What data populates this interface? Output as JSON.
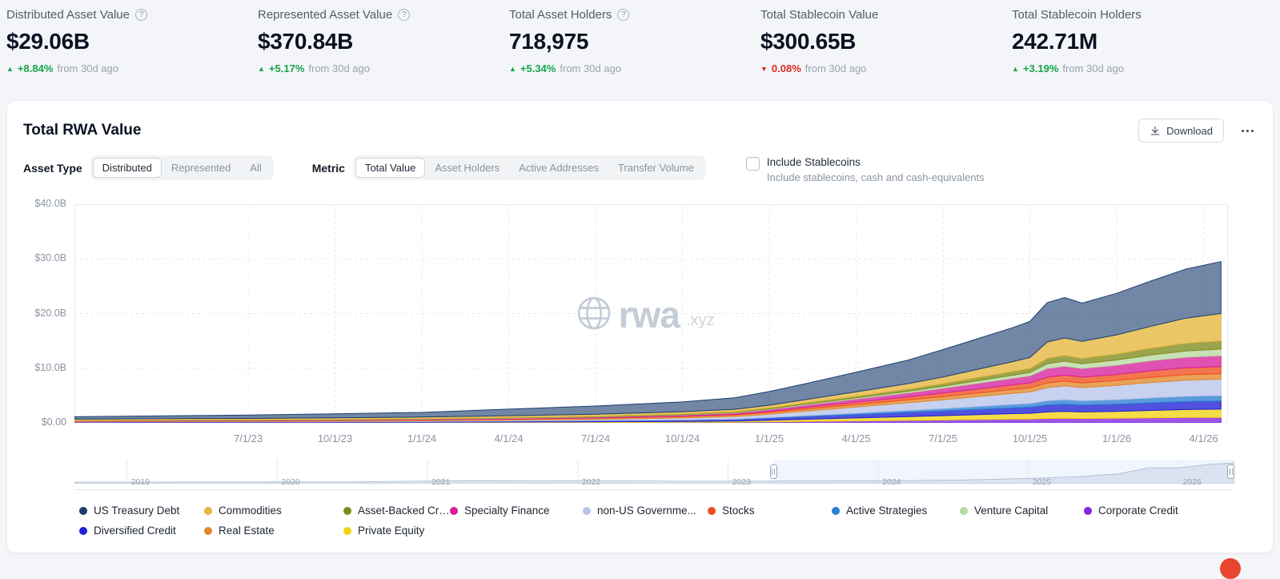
{
  "stats": [
    {
      "label": "Distributed Asset Value",
      "has_help": true,
      "value": "$29.06B",
      "delta": "+8.84%",
      "delta_dir": "up",
      "delta_suffix": "from 30d ago"
    },
    {
      "label": "Represented Asset Value",
      "has_help": true,
      "value": "$370.84B",
      "delta": "+5.17%",
      "delta_dir": "up",
      "delta_suffix": "from 30d ago"
    },
    {
      "label": "Total Asset Holders",
      "has_help": true,
      "value": "718,975",
      "delta": "+5.34%",
      "delta_dir": "up",
      "delta_suffix": "from 30d ago"
    },
    {
      "label": "Total Stablecoin Value",
      "has_help": false,
      "value": "$300.65B",
      "delta": "0.08%",
      "delta_dir": "down",
      "delta_suffix": "from 30d ago"
    },
    {
      "label": "Total Stablecoin Holders",
      "has_help": false,
      "value": "242.71M",
      "delta": "+3.19%",
      "delta_dir": "up",
      "delta_suffix": "from 30d ago"
    }
  ],
  "card": {
    "title": "Total RWA Value",
    "download_label": "Download",
    "asset_type_label": "Asset Type",
    "asset_type_options": [
      "Distributed",
      "Represented",
      "All"
    ],
    "asset_type_selected": "Distributed",
    "metric_label": "Metric",
    "metric_options": [
      "Total Value",
      "Asset Holders",
      "Active Addresses",
      "Transfer Volume"
    ],
    "metric_selected": "Total Value",
    "stablecoins_checkbox_label": "Include Stablecoins",
    "stablecoins_checkbox_checked": false,
    "stablecoins_checkbox_sublabel": "Include stablecoins, cash and cash-equivalents",
    "watermark": {
      "brand": "rwa",
      "suffix": ".xyz"
    }
  },
  "chart_data": {
    "type": "area",
    "stacked": true,
    "title": "Total RWA Value",
    "unit": "USD billions",
    "grid": true,
    "legend_position": "bottom",
    "x_range": [
      2023.0,
      2026.32
    ],
    "y_range": [
      0,
      40
    ],
    "y_ticks": [
      {
        "v": 0,
        "label": "$0.00"
      },
      {
        "v": 10,
        "label": "$10.0B"
      },
      {
        "v": 20,
        "label": "$20.0B"
      },
      {
        "v": 30,
        "label": "$30.0B"
      },
      {
        "v": 40,
        "label": "$40.0B"
      }
    ],
    "x_ticks": [
      {
        "t": 2023.5,
        "label": "7/1/23"
      },
      {
        "t": 2023.75,
        "label": "10/1/23"
      },
      {
        "t": 2024.0,
        "label": "1/1/24"
      },
      {
        "t": 2024.25,
        "label": "4/1/24"
      },
      {
        "t": 2024.5,
        "label": "7/1/24"
      },
      {
        "t": 2024.75,
        "label": "10/1/24"
      },
      {
        "t": 2025.0,
        "label": "1/1/25"
      },
      {
        "t": 2025.25,
        "label": "4/1/25"
      },
      {
        "t": 2025.5,
        "label": "7/1/25"
      },
      {
        "t": 2025.75,
        "label": "10/1/25"
      },
      {
        "t": 2026.0,
        "label": "1/1/26"
      },
      {
        "t": 2026.25,
        "label": "4/1/26"
      }
    ],
    "x": [
      2023.0,
      2023.2,
      2023.5,
      2023.75,
      2024.0,
      2024.25,
      2024.5,
      2024.75,
      2024.9,
      2025.0,
      2025.1,
      2025.25,
      2025.4,
      2025.5,
      2025.6,
      2025.7,
      2025.75,
      2025.8,
      2025.85,
      2025.9,
      2026.0,
      2026.1,
      2026.2,
      2026.3
    ],
    "series": [
      {
        "key": "corporate_credit",
        "name": "Corporate Credit",
        "color": "#8324e0",
        "values": [
          0.02,
          0.02,
          0.02,
          0.03,
          0.04,
          0.05,
          0.07,
          0.1,
          0.13,
          0.18,
          0.25,
          0.35,
          0.45,
          0.52,
          0.6,
          0.68,
          0.7,
          0.8,
          0.85,
          0.8,
          0.85,
          0.92,
          0.98,
          1.0
        ]
      },
      {
        "key": "private_equity",
        "name": "Private Equity",
        "color": "#f2d313",
        "values": [
          0.04,
          0.05,
          0.05,
          0.06,
          0.07,
          0.1,
          0.12,
          0.15,
          0.2,
          0.3,
          0.4,
          0.55,
          0.7,
          0.8,
          0.9,
          1.0,
          1.05,
          1.2,
          1.25,
          1.2,
          1.25,
          1.35,
          1.45,
          1.5
        ]
      },
      {
        "key": "diversified_credit",
        "name": "Diversified Credit",
        "color": "#2020d6",
        "values": [
          0.09,
          0.1,
          0.11,
          0.12,
          0.14,
          0.17,
          0.2,
          0.25,
          0.3,
          0.38,
          0.48,
          0.6,
          0.75,
          0.85,
          0.95,
          1.05,
          1.1,
          1.25,
          1.3,
          1.25,
          1.3,
          1.4,
          1.45,
          1.5
        ]
      },
      {
        "key": "active_strategies",
        "name": "Active Strategies",
        "color": "#2b7fd4",
        "values": [
          0.0,
          0.0,
          0.0,
          0.01,
          0.01,
          0.02,
          0.03,
          0.05,
          0.08,
          0.12,
          0.18,
          0.28,
          0.38,
          0.45,
          0.55,
          0.65,
          0.7,
          0.8,
          0.85,
          0.8,
          0.85,
          0.92,
          0.98,
          1.0
        ]
      },
      {
        "key": "non_us_government",
        "name": "non-US Governme...",
        "color": "#b9c4ea",
        "values": [
          0.04,
          0.05,
          0.06,
          0.08,
          0.1,
          0.15,
          0.22,
          0.35,
          0.45,
          0.6,
          0.8,
          1.1,
          1.4,
          1.6,
          1.8,
          2.0,
          2.1,
          2.4,
          2.5,
          2.4,
          2.6,
          2.8,
          2.95,
          3.0
        ]
      },
      {
        "key": "real_estate",
        "name": "Real Estate",
        "color": "#e2882a",
        "values": [
          0.11,
          0.12,
          0.13,
          0.14,
          0.16,
          0.18,
          0.2,
          0.25,
          0.28,
          0.32,
          0.38,
          0.45,
          0.52,
          0.58,
          0.65,
          0.72,
          0.75,
          0.85,
          0.88,
          0.85,
          0.9,
          0.95,
          1.0,
          1.0
        ]
      },
      {
        "key": "stocks",
        "name": "Stocks",
        "color": "#f04f1f",
        "values": [
          0.01,
          0.01,
          0.01,
          0.02,
          0.02,
          0.03,
          0.05,
          0.08,
          0.12,
          0.2,
          0.3,
          0.45,
          0.55,
          0.65,
          0.75,
          0.85,
          0.9,
          1.05,
          1.1,
          1.05,
          1.1,
          1.2,
          1.25,
          1.3
        ]
      },
      {
        "key": "specialty_finance",
        "name": "Specialty Finance",
        "color": "#d6219c",
        "values": [
          0.07,
          0.08,
          0.09,
          0.1,
          0.12,
          0.15,
          0.18,
          0.22,
          0.26,
          0.35,
          0.45,
          0.6,
          0.75,
          0.9,
          1.05,
          1.2,
          1.3,
          1.6,
          1.65,
          1.6,
          1.7,
          1.85,
          1.95,
          2.0
        ]
      },
      {
        "key": "venture_capital",
        "name": "Venture Capital",
        "color": "#b7d9a0",
        "values": [
          0.02,
          0.02,
          0.02,
          0.03,
          0.03,
          0.04,
          0.05,
          0.06,
          0.08,
          0.1,
          0.14,
          0.2,
          0.28,
          0.35,
          0.45,
          0.55,
          0.6,
          0.85,
          0.9,
          0.85,
          0.95,
          1.05,
          1.15,
          1.2
        ]
      },
      {
        "key": "asset_backed_credit",
        "name": "Asset-Backed Credit",
        "color": "#7f8c1b",
        "values": [
          0.04,
          0.05,
          0.05,
          0.06,
          0.07,
          0.08,
          0.1,
          0.12,
          0.14,
          0.18,
          0.22,
          0.3,
          0.4,
          0.5,
          0.6,
          0.7,
          0.75,
          1.0,
          1.05,
          1.0,
          1.1,
          1.25,
          1.4,
          1.5
        ]
      },
      {
        "key": "commodities",
        "name": "Commodities",
        "color": "#e4b63c",
        "values": [
          0.23,
          0.24,
          0.26,
          0.28,
          0.3,
          0.33,
          0.36,
          0.4,
          0.44,
          0.5,
          0.6,
          0.8,
          1.0,
          1.2,
          1.5,
          1.8,
          2.0,
          3.0,
          3.2,
          3.1,
          3.5,
          4.0,
          4.6,
          5.0
        ]
      },
      {
        "key": "us_treasury_debt",
        "name": "US Treasury Debt",
        "color": "#1b3e6f",
        "values": [
          0.45,
          0.5,
          0.62,
          0.72,
          0.85,
          1.2,
          1.5,
          1.8,
          2.1,
          2.5,
          2.9,
          3.6,
          4.3,
          5.0,
          5.6,
          6.2,
          6.6,
          7.2,
          7.4,
          7.0,
          7.6,
          8.3,
          9.0,
          9.5
        ]
      }
    ],
    "legend_order": [
      "us_treasury_debt",
      "commodities",
      "asset_backed_credit",
      "specialty_finance",
      "non_us_government",
      "stocks",
      "active_strategies",
      "venture_capital",
      "corporate_credit",
      "diversified_credit",
      "real_estate",
      "private_equity"
    ],
    "brush": {
      "x_range": [
        2018.65,
        2026.37
      ],
      "year_ticks": [
        2019,
        2020,
        2021,
        2022,
        2023,
        2024,
        2025,
        2026
      ],
      "selection": [
        2023.3,
        2026.37
      ],
      "x": [
        2018.65,
        2019,
        2019.5,
        2020,
        2020.5,
        2021,
        2021.3,
        2021.7,
        2022,
        2022.3,
        2022.7,
        2023,
        2023.5,
        2024,
        2024.5,
        2025,
        2025.3,
        2025.6,
        2025.8,
        2026,
        2026.2,
        2026.37
      ],
      "values": [
        0.02,
        0.05,
        0.1,
        0.2,
        0.5,
        1.5,
        2.2,
        2.0,
        2.3,
        1.8,
        1.4,
        1.3,
        1.6,
        1.95,
        3.0,
        5.7,
        8.0,
        12.5,
        22,
        22,
        27,
        29.5
      ]
    }
  }
}
